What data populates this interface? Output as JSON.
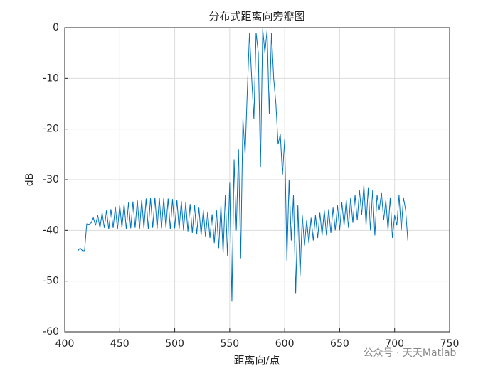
{
  "chart_data": {
    "type": "line",
    "title": "分布式距离向旁瓣图",
    "x_label": "距离向/点",
    "y_label": "dB",
    "annotations": [
      "公众号 · 天天Matlab"
    ],
    "xlim": [
      400,
      750
    ],
    "xticks": [
      400,
      450,
      500,
      550,
      600,
      650,
      700,
      750
    ],
    "ylim": [
      -60,
      0
    ],
    "yticks": [
      -60,
      -50,
      -40,
      -30,
      -20,
      -10,
      0
    ],
    "grid": true,
    "x": [
      412,
      414,
      416,
      418,
      420,
      422,
      424,
      426,
      428,
      430,
      432,
      434,
      436,
      438,
      440,
      442,
      444,
      446,
      448,
      450,
      452,
      454,
      456,
      458,
      460,
      462,
      464,
      466,
      468,
      470,
      472,
      474,
      476,
      478,
      480,
      482,
      484,
      486,
      488,
      490,
      492,
      494,
      496,
      498,
      500,
      502,
      504,
      506,
      508,
      510,
      512,
      514,
      516,
      518,
      520,
      522,
      524,
      526,
      528,
      530,
      532,
      534,
      536,
      538,
      540,
      542,
      544,
      546,
      548,
      550,
      552,
      554,
      556,
      558,
      560,
      562,
      564,
      566,
      568,
      570,
      572,
      574,
      576,
      578,
      580,
      582,
      584,
      586,
      588,
      590,
      592,
      594,
      596,
      598,
      600,
      602,
      604,
      606,
      608,
      610,
      612,
      614,
      616,
      618,
      620,
      622,
      624,
      626,
      628,
      630,
      632,
      634,
      636,
      638,
      640,
      642,
      644,
      646,
      648,
      650,
      652,
      654,
      656,
      658,
      660,
      662,
      664,
      666,
      668,
      670,
      672,
      674,
      676,
      678,
      680,
      682,
      684,
      686,
      688,
      690,
      692,
      694,
      696,
      698,
      700,
      702,
      704,
      706,
      708,
      710,
      712
    ],
    "series": [
      {
        "color": "#0072bd",
        "values": [
          -44,
          -43.5,
          -44,
          -44,
          -38.7,
          -38.8,
          -38.5,
          -37.5,
          -39,
          -37,
          -39.5,
          -36.5,
          -39.5,
          -36,
          -39.8,
          -35.8,
          -39.5,
          -35.3,
          -39.8,
          -35,
          -39.5,
          -34.8,
          -39.8,
          -34.5,
          -39.6,
          -34.3,
          -39.5,
          -34,
          -39.8,
          -33.9,
          -39.6,
          -33.7,
          -39.8,
          -33.6,
          -39.5,
          -33.5,
          -39.7,
          -33.5,
          -39.6,
          -33.6,
          -39.5,
          -33.7,
          -39.8,
          -33.8,
          -39.6,
          -34,
          -39.8,
          -34.2,
          -40,
          -34.5,
          -40.2,
          -34.8,
          -40.5,
          -35,
          -40.8,
          -35.5,
          -41,
          -36,
          -41.3,
          -36.3,
          -41.5,
          -36.8,
          -42.5,
          -36,
          -43.5,
          -35,
          -44.5,
          -33,
          -45,
          -30.5,
          -54,
          -26,
          -40,
          -24,
          -45.5,
          -18,
          -25,
          -12.5,
          -1,
          -10,
          -18,
          -1,
          -5,
          -27.5,
          -0.2,
          -5,
          -0.5,
          -17,
          -1,
          -10,
          -15,
          -23,
          -21,
          -29,
          -22,
          -46,
          -30,
          -42,
          -33,
          -52.5,
          -35,
          -49,
          -37,
          -43,
          -38,
          -42.5,
          -37.5,
          -42,
          -37,
          -41.5,
          -36.5,
          -41,
          -36,
          -41,
          -35.8,
          -40.5,
          -35.5,
          -40,
          -35,
          -40,
          -34.5,
          -39,
          -34,
          -39.5,
          -33.5,
          -38.5,
          -33,
          -38,
          -32,
          -37,
          -31,
          -39,
          -31.5,
          -40,
          -32,
          -41,
          -33,
          -36,
          -32.5,
          -38,
          -34,
          -40,
          -33.5,
          -41.5,
          -37,
          -39,
          -33,
          -40,
          -33.5,
          -36,
          -42
        ]
      }
    ]
  }
}
